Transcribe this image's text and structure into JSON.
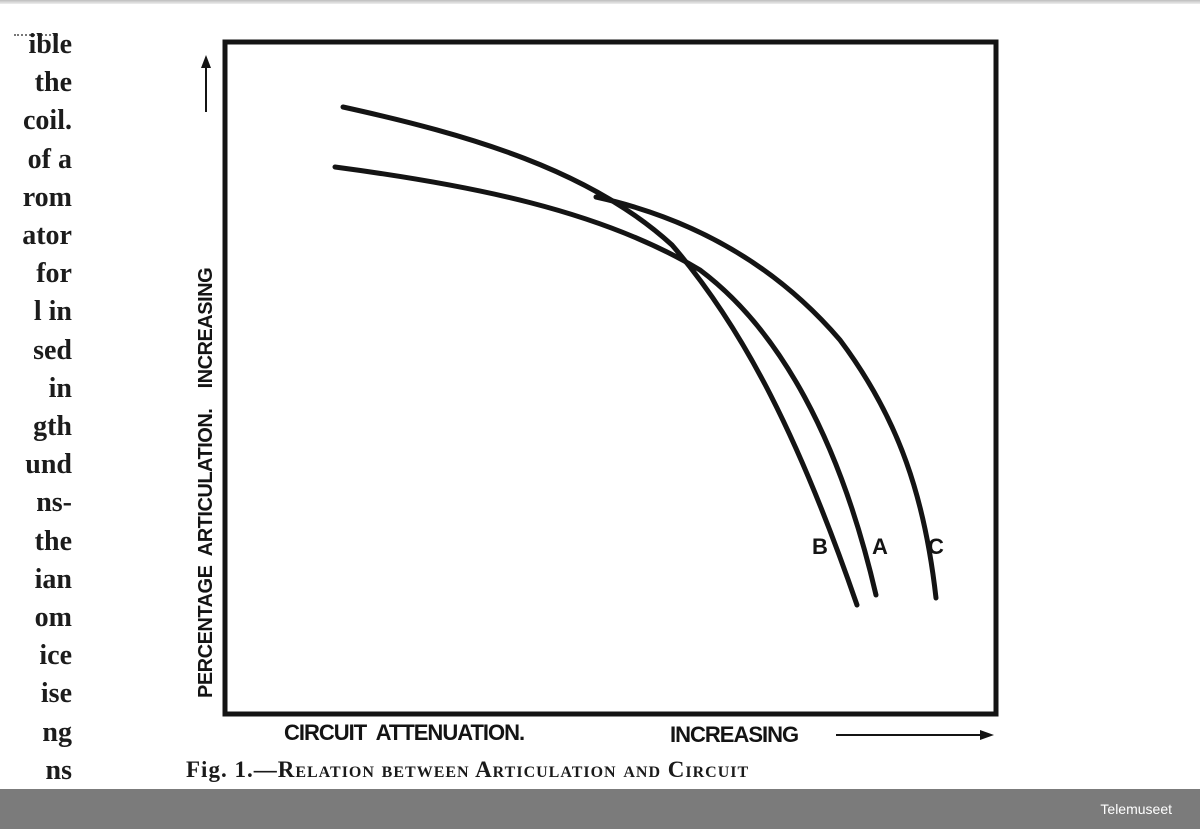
{
  "side_text": {
    "lines": [
      "ible",
      "the",
      "coil.",
      "of a",
      "rom",
      "ator",
      "for",
      "l  in",
      "sed",
      "in",
      "gth",
      "und",
      "ns-",
      "the",
      "ian",
      "om",
      "ice",
      "ise",
      "ng",
      "ns"
    ]
  },
  "figure": {
    "y_axis_label": "PERCENTAGE  ARTICULATION.    INCREASING",
    "x_axis_label_left": "CIRCUIT  ATTENUATION.",
    "x_axis_label_right": "INCREASING",
    "curve_labels": [
      "B",
      "A",
      "C"
    ],
    "caption_prefix": "Fig. 1.—",
    "caption_text": "Relation between Articulation and Circuit"
  },
  "footer": {
    "credit": "Telemuseet",
    "bar_color": "#7b7b7b"
  }
}
